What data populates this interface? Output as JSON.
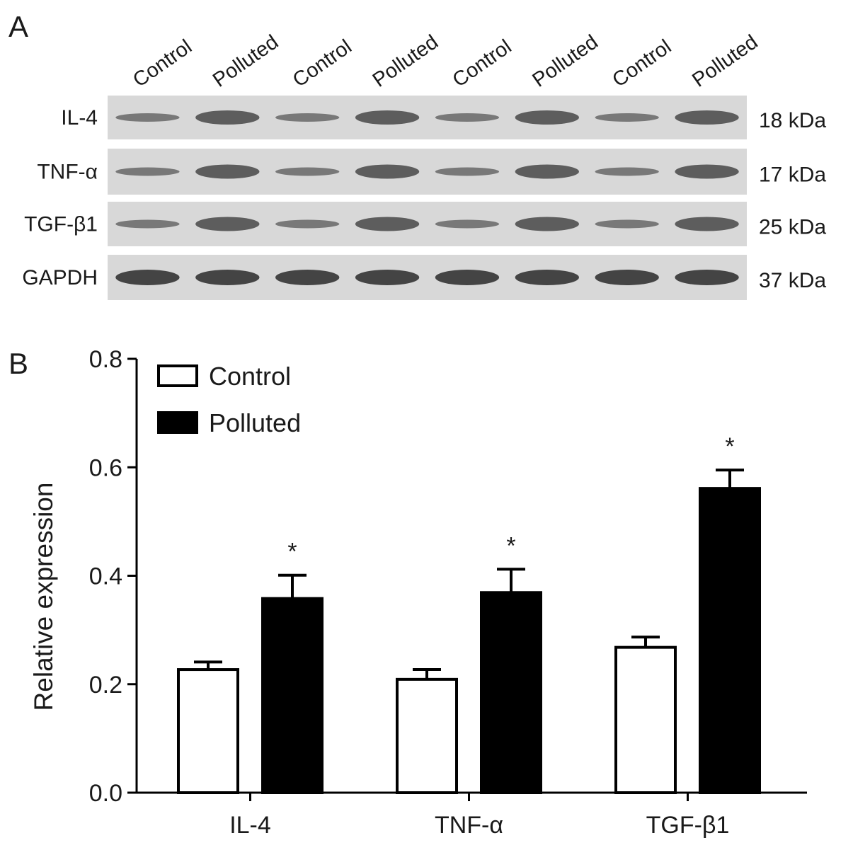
{
  "blot": {
    "panel_label": "A",
    "lanes": [
      "Control",
      "Polluted",
      "Control",
      "Polluted",
      "Control",
      "Polluted",
      "Control",
      "Polluted"
    ],
    "rows": [
      {
        "name": "IL-4",
        "size": "18 kDa"
      },
      {
        "name": "TNF-α",
        "size": "17 kDa"
      },
      {
        "name": "TGF-β1",
        "size": "25 kDa"
      },
      {
        "name": "GAPDH",
        "size": "37 kDa"
      }
    ]
  },
  "chart_data": {
    "type": "bar",
    "panel_label": "B",
    "ylabel": "Relative expression",
    "categories": [
      "IL-4",
      "TNF-α",
      "TGF-β1"
    ],
    "series": [
      {
        "name": "Control",
        "color": "#ffffff",
        "values": [
          0.227,
          0.209,
          0.268
        ],
        "errors": [
          0.014,
          0.018,
          0.019
        ]
      },
      {
        "name": "Polluted",
        "color": "#000000",
        "values": [
          0.358,
          0.369,
          0.561
        ],
        "errors": [
          0.043,
          0.043,
          0.034
        ],
        "annotations": [
          "*",
          "*",
          "*"
        ]
      }
    ],
    "ylim": [
      0,
      0.8
    ],
    "yticks": [
      {
        "value": 0,
        "label": "0.0"
      },
      0.2,
      0.4,
      0.6,
      0.8
    ],
    "legend": "upper left"
  }
}
